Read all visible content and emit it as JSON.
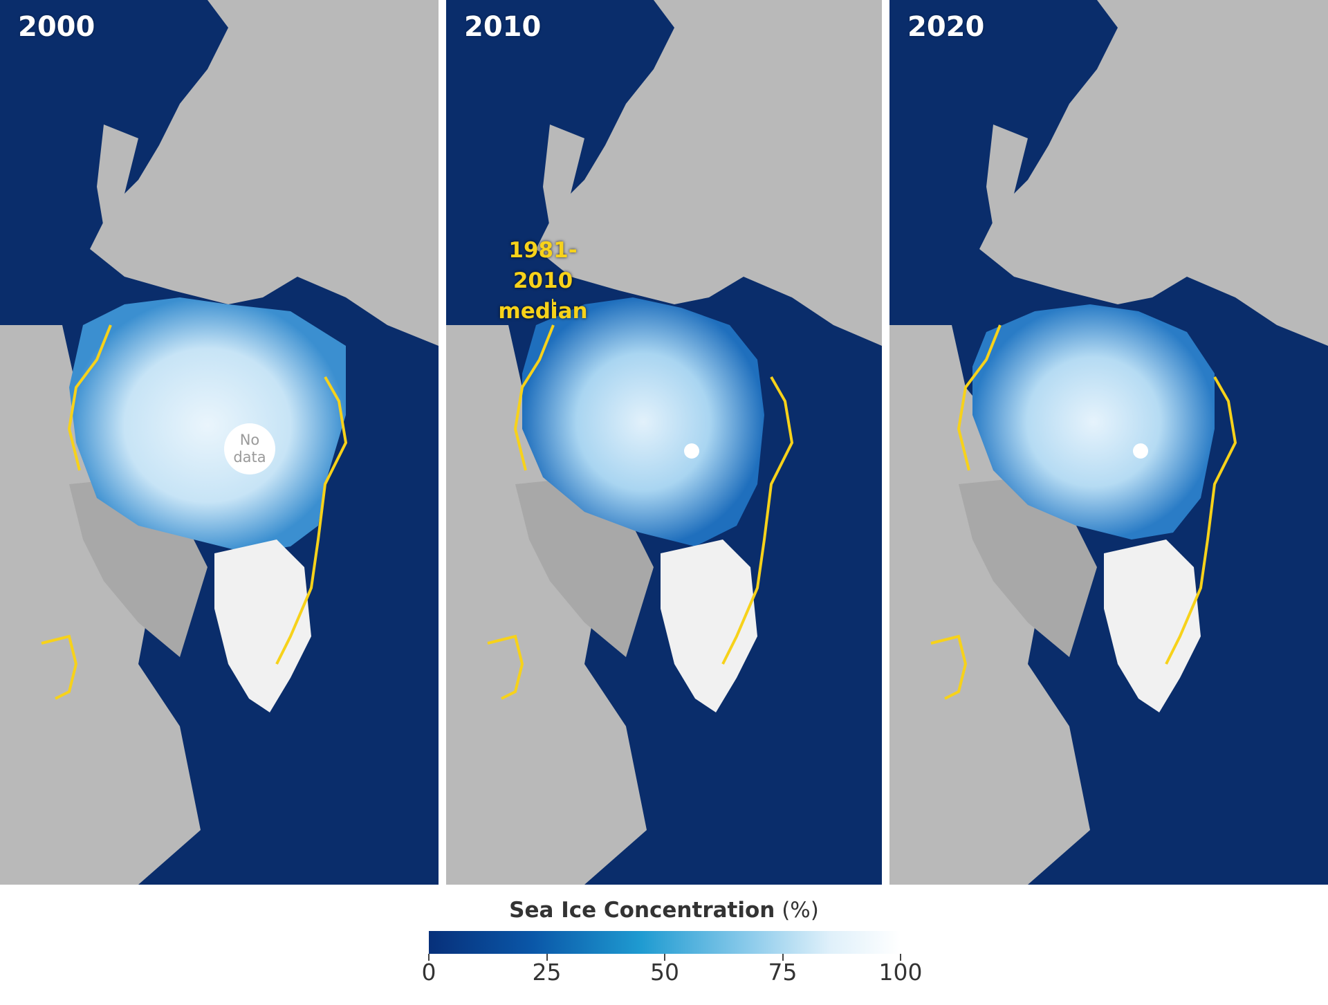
{
  "panels": [
    {
      "year": "2000",
      "nodata_line1": "No",
      "nodata_line2": "data"
    },
    {
      "year": "2010",
      "median_line1": "1981-2010",
      "median_line2": "median"
    },
    {
      "year": "2020"
    }
  ],
  "legend": {
    "title_bold": "Sea Ice Concentration",
    "title_unit": "(%)",
    "ticks": [
      "0",
      "25",
      "50",
      "75",
      "100"
    ],
    "range": [
      0,
      100
    ]
  },
  "colors": {
    "ocean": "#0a2d6b",
    "land": "#b9b9b9",
    "ice": "#cfe8f8",
    "median_line": "#f7d21a",
    "greenland": "#f1f1f1"
  }
}
